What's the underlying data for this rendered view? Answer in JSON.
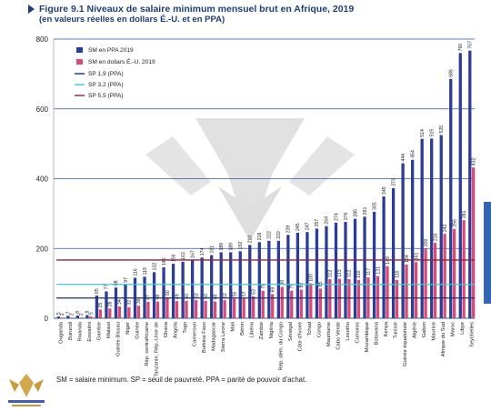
{
  "figure": {
    "title_line1": "Figure 9.1  Niveaux de salaire minimum mensuel brut en Afrique, 2019",
    "title_line2": "(en valeurs réelles en dollars É.-U. et en PPA)",
    "footnote": "SM = salaire minimum. SP = seuil de pauvreté. PPA = parité de pouvoir d'achat."
  },
  "colors": {
    "ppa": "#2b3d97",
    "usd": "#d94a76",
    "sp19": "#1f2f6e",
    "sp32": "#3fc8d8",
    "sp55": "#9b1f3c",
    "grid": "#2a57a8",
    "title": "#1f3d7a"
  },
  "chart_data": {
    "type": "bar",
    "title": "Niveaux de salaire minimum mensuel brut en Afrique, 2019",
    "ylim": [
      0,
      800
    ],
    "yticks": [
      0,
      200,
      400,
      600,
      800
    ],
    "grid": true,
    "legend_position": "top-left",
    "categories": [
      "Ouganda",
      "Burundi",
      "Rwanda",
      "Eswatini",
      "Gambie",
      "Malawi",
      "Guinée-Bissau",
      "Niger",
      "Guinée",
      "Rép. centrafricaine",
      "Tanzanie, Rép.-Unie de",
      "Ghana",
      "Angola",
      "Togo",
      "Cameroun",
      "Burkina Faso",
      "Madagascar",
      "Sierra Leone",
      "Mali",
      "Bénin",
      "Libéria",
      "Zambie",
      "Nigéria",
      "Rép. dém. du Congo",
      "Sénégal",
      "Côte d'Ivoire",
      "Tchad",
      "Congo",
      "Mauritanie",
      "Cabo Verde",
      "Lesotho",
      "Comores",
      "Mozambique",
      "Botswana",
      "Kenya",
      "Tunisie",
      "Guinée équatoriale",
      "Algérie",
      "Gabon",
      "Maurice",
      "Afrique du Sud",
      "Maroc",
      "Libye",
      "Seychelles"
    ],
    "series": [
      {
        "name": "SM en PPA 2019",
        "values": [
          5,
          7,
          8,
          9,
          65,
          77,
          88,
          97,
          116,
          119,
          132,
          146,
          156,
          162,
          167,
          174,
          181,
          189,
          189,
          192,
          210,
          218,
          222,
          222,
          239,
          245,
          247,
          257,
          264,
          274,
          276,
          285,
          291,
          305,
          349,
          373,
          444,
          454,
          514,
          515,
          525,
          686,
          760,
          767
        ]
      },
      {
        "name": "SM en dollars É.-U. 2019",
        "values": [
          2,
          2,
          2,
          5,
          25,
          28,
          34,
          32,
          36,
          47,
          48,
          60,
          49,
          50,
          52,
          50,
          48,
          52,
          56,
          57,
          63,
          79,
          69,
          90,
          79,
          82,
          100,
          85,
          112,
          113,
          112,
          110,
          117,
          121,
          149,
          110,
          154,
          161,
          200,
          216,
          242,
          256,
          281,
          432
        ]
      }
    ],
    "reference_lines": [
      {
        "name": "SP 1,9 (PPA)",
        "value": 58
      },
      {
        "name": "SP 3,2 (PPA)",
        "value": 97
      },
      {
        "name": "SP 5,5 (PPA)",
        "value": 167
      }
    ],
    "value_labels_ppa": [
      "5",
      "7",
      "8",
      "9",
      "65",
      "77",
      "88",
      "97",
      "116",
      "119",
      "132",
      "146",
      "156",
      "162",
      "167",
      "174",
      "181",
      "189",
      "189",
      "192",
      "210",
      "218",
      "222",
      "222",
      "239",
      "245",
      "247",
      "257",
      "264",
      "274",
      "276",
      "285",
      "291",
      "305",
      "349",
      "373",
      "444",
      "454",
      "514",
      "515",
      "525",
      "686",
      "760",
      "767"
    ],
    "value_labels_usd": [
      "2",
      "2",
      "2",
      "5",
      "25",
      "28",
      "34",
      "32",
      "36",
      "47",
      "48",
      "60",
      "49",
      "50",
      "52",
      "50",
      "48",
      "52",
      "56",
      "57",
      "63",
      "79",
      "69",
      "90",
      "79",
      "82",
      "100",
      "85",
      "112",
      "113",
      "112",
      "110",
      "117",
      "121",
      "149",
      "110",
      "154",
      "161",
      "200",
      "216",
      "242",
      "256",
      "281",
      "432"
    ]
  }
}
